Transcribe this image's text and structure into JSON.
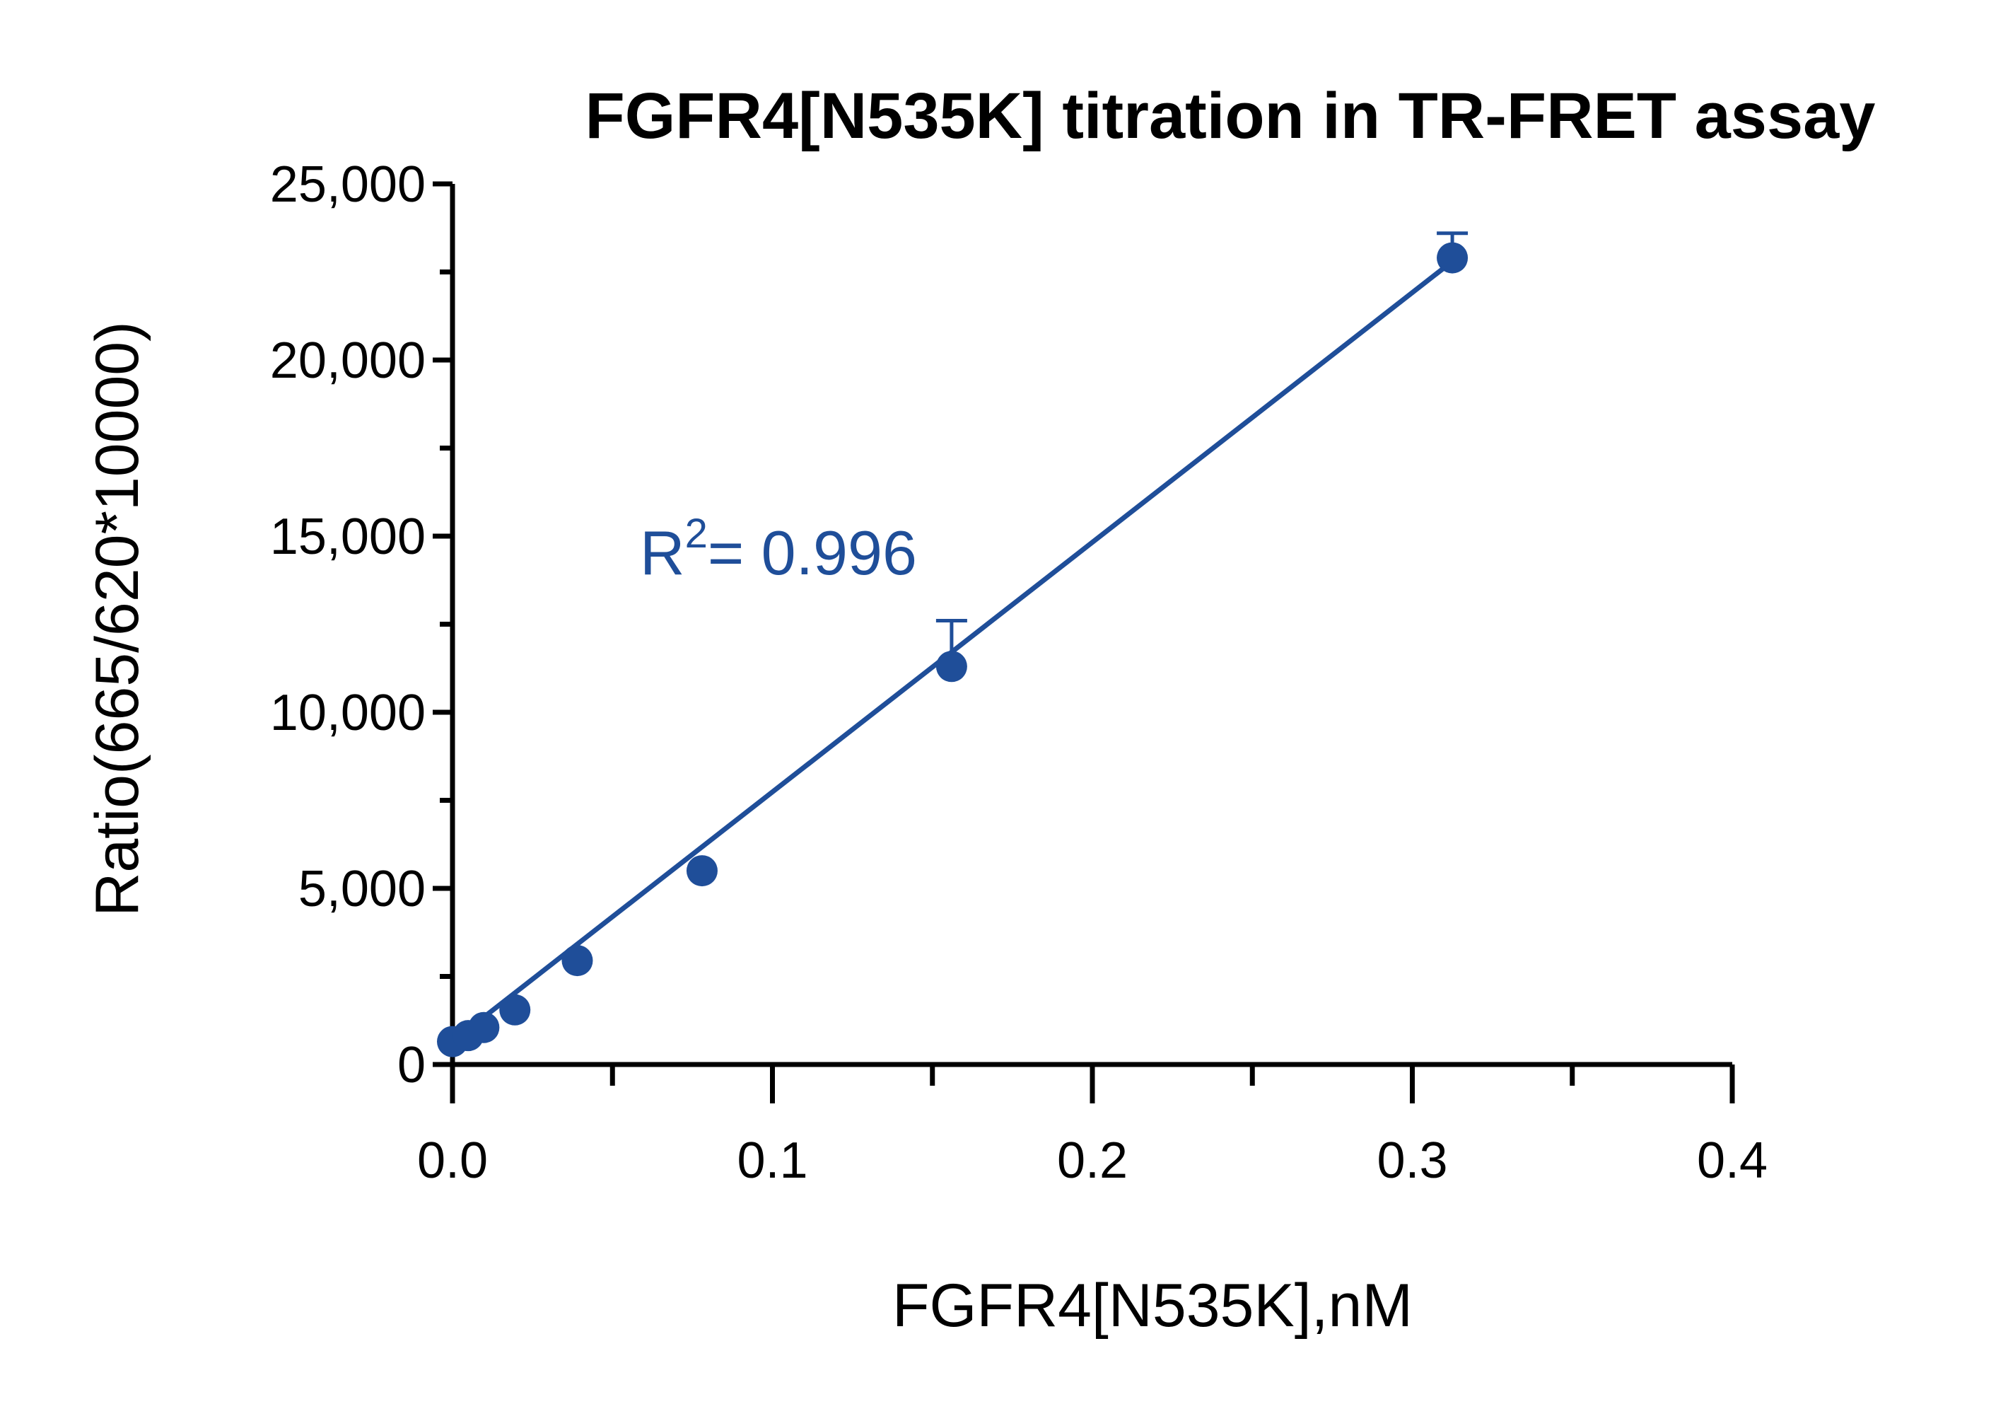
{
  "chart_data": {
    "type": "scatter",
    "title": "FGFR4[N535K] titration in TR-FRET assay",
    "xlabel": "FGFR4[N535K],nM",
    "ylabel": "Ratio(665/620*10000)",
    "xlim": [
      0,
      0.4
    ],
    "ylim": [
      0,
      25000
    ],
    "x_ticks": [
      0.0,
      0.1,
      0.2,
      0.3,
      0.4
    ],
    "x_tick_labels": [
      "0.0",
      "0.1",
      "0.2",
      "0.3",
      "0.4"
    ],
    "y_ticks": [
      0,
      5000,
      10000,
      15000,
      20000,
      25000
    ],
    "y_tick_labels": [
      "0",
      "5,000",
      "10,000",
      "15,000",
      "20,000",
      "25,000"
    ],
    "grid": false,
    "series": [
      {
        "points": [
          {
            "x": 0.0,
            "y": 650
          },
          {
            "x": 0.0049,
            "y": 820
          },
          {
            "x": 0.0098,
            "y": 1050
          },
          {
            "x": 0.0195,
            "y": 1550
          },
          {
            "x": 0.039,
            "y": 2950
          },
          {
            "x": 0.078,
            "y": 5500
          },
          {
            "x": 0.156,
            "y": 11300,
            "error": 1300
          },
          {
            "x": 0.3125,
            "y": 22900,
            "error": 700
          }
        ],
        "color": "#1f4e99"
      }
    ],
    "fit_line": {
      "type": "linear",
      "x_range": [
        0.0,
        0.3125
      ],
      "y_range": [
        650,
        22800
      ],
      "color": "#1f4e99"
    },
    "annotation": {
      "base": "R",
      "superscript": "2",
      "text": "= 0.996",
      "color": "#1f4e99"
    }
  }
}
